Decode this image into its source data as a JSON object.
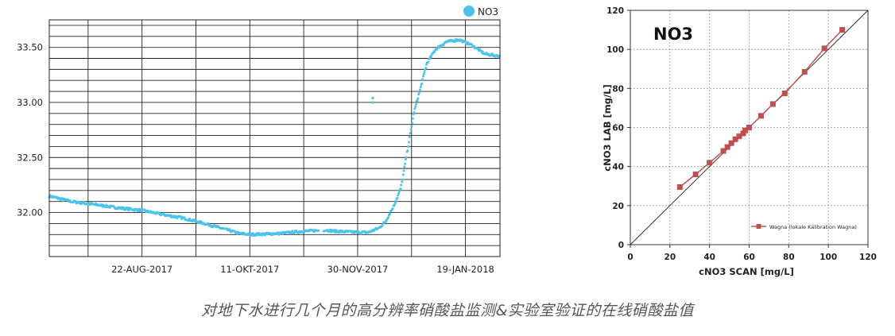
{
  "caption": "对地下水进行几个月的高分辨率硝酸盐监测&实验室验证的在线硝酸盐值",
  "colors": {
    "series": "#4cc3ea",
    "calib": "#c0504d",
    "grid": "#222222",
    "dotted": "#999999"
  },
  "chart_data": [
    {
      "type": "scatter",
      "title": "",
      "xlabel": "",
      "ylabel": "",
      "legend": {
        "entries": [
          "NO3"
        ],
        "placement": "top-right"
      },
      "x_ticks": [
        "22-AUG-2017",
        "11-OKT-2017",
        "30-NOV-2017",
        "19-JAN-2018"
      ],
      "y_ticks": [
        "32.00",
        "32.50",
        "33.00",
        "33.50"
      ],
      "xlim": [
        "2017-07-10",
        "2018-02-04"
      ],
      "ylim": [
        31.6,
        33.75
      ],
      "grid": true,
      "series": [
        {
          "name": "NO3",
          "points": [
            [
              "2017-07-10",
              32.15
            ],
            [
              "2017-07-20",
              32.1
            ],
            [
              "2017-08-01",
              32.07
            ],
            [
              "2017-08-12",
              32.04
            ],
            [
              "2017-08-22",
              32.02
            ],
            [
              "2017-09-01",
              31.98
            ],
            [
              "2017-09-10",
              31.95
            ],
            [
              "2017-09-20",
              31.9
            ],
            [
              "2017-10-01",
              31.84
            ],
            [
              "2017-10-06",
              31.81
            ],
            [
              "2017-10-11",
              31.8
            ],
            [
              "2017-10-25",
              31.81
            ],
            [
              "2017-11-05",
              31.83
            ],
            [
              "2017-11-15",
              31.84
            ],
            [
              "2017-11-20",
              31.83
            ],
            [
              "2017-11-30",
              31.82
            ],
            [
              "2017-12-05",
              31.82
            ],
            [
              "2017-12-10",
              31.86
            ],
            [
              "2017-12-13",
              31.92
            ],
            [
              "2017-12-17",
              32.07
            ],
            [
              "2017-12-20",
              32.22
            ],
            [
              "2017-12-23",
              32.55
            ],
            [
              "2017-12-26",
              32.9
            ],
            [
              "2017-12-29",
              33.12
            ],
            [
              "2018-01-01",
              33.35
            ],
            [
              "2018-01-05",
              33.48
            ],
            [
              "2018-01-10",
              33.55
            ],
            [
              "2018-01-16",
              33.57
            ],
            [
              "2018-01-22",
              33.52
            ],
            [
              "2018-01-28",
              33.44
            ],
            [
              "2018-02-04",
              33.42
            ]
          ],
          "gaps": [
            [
              "2017-11-12",
              "2017-11-14"
            ]
          ],
          "outliers": [
            [
              "2017-12-07",
              33.0
            ],
            [
              "2017-12-07",
              33.04
            ]
          ]
        }
      ]
    },
    {
      "type": "line",
      "title": "NO3",
      "xlabel": "cNO3 SCAN  [mg/L]",
      "ylabel": "cNO3 LAB  [mg/L]",
      "xlim": [
        0,
        120
      ],
      "ylim": [
        0,
        120
      ],
      "x_ticks": [
        "0",
        "20",
        "40",
        "60",
        "80",
        "100",
        "120"
      ],
      "y_ticks": [
        "0",
        "20",
        "40",
        "60",
        "80",
        "100",
        "120"
      ],
      "grid": "dotted",
      "legend": {
        "entries": [
          "Wagna (lokale Kalibration Wagna)"
        ],
        "placement": "bottom-right"
      },
      "reference_line": {
        "from": [
          0,
          0
        ],
        "to": [
          120,
          120
        ]
      },
      "series": [
        {
          "name": "Wagna (lokale Kalibration Wagna)",
          "x": [
            25,
            33,
            40,
            47,
            49,
            51,
            53,
            55,
            57,
            58,
            60,
            66,
            72,
            78,
            88,
            98,
            107
          ],
          "y": [
            29.5,
            36,
            42,
            48,
            50,
            52,
            54,
            55.5,
            57,
            58.5,
            60,
            66,
            72,
            77.5,
            88.5,
            100.5,
            110
          ]
        }
      ]
    }
  ]
}
